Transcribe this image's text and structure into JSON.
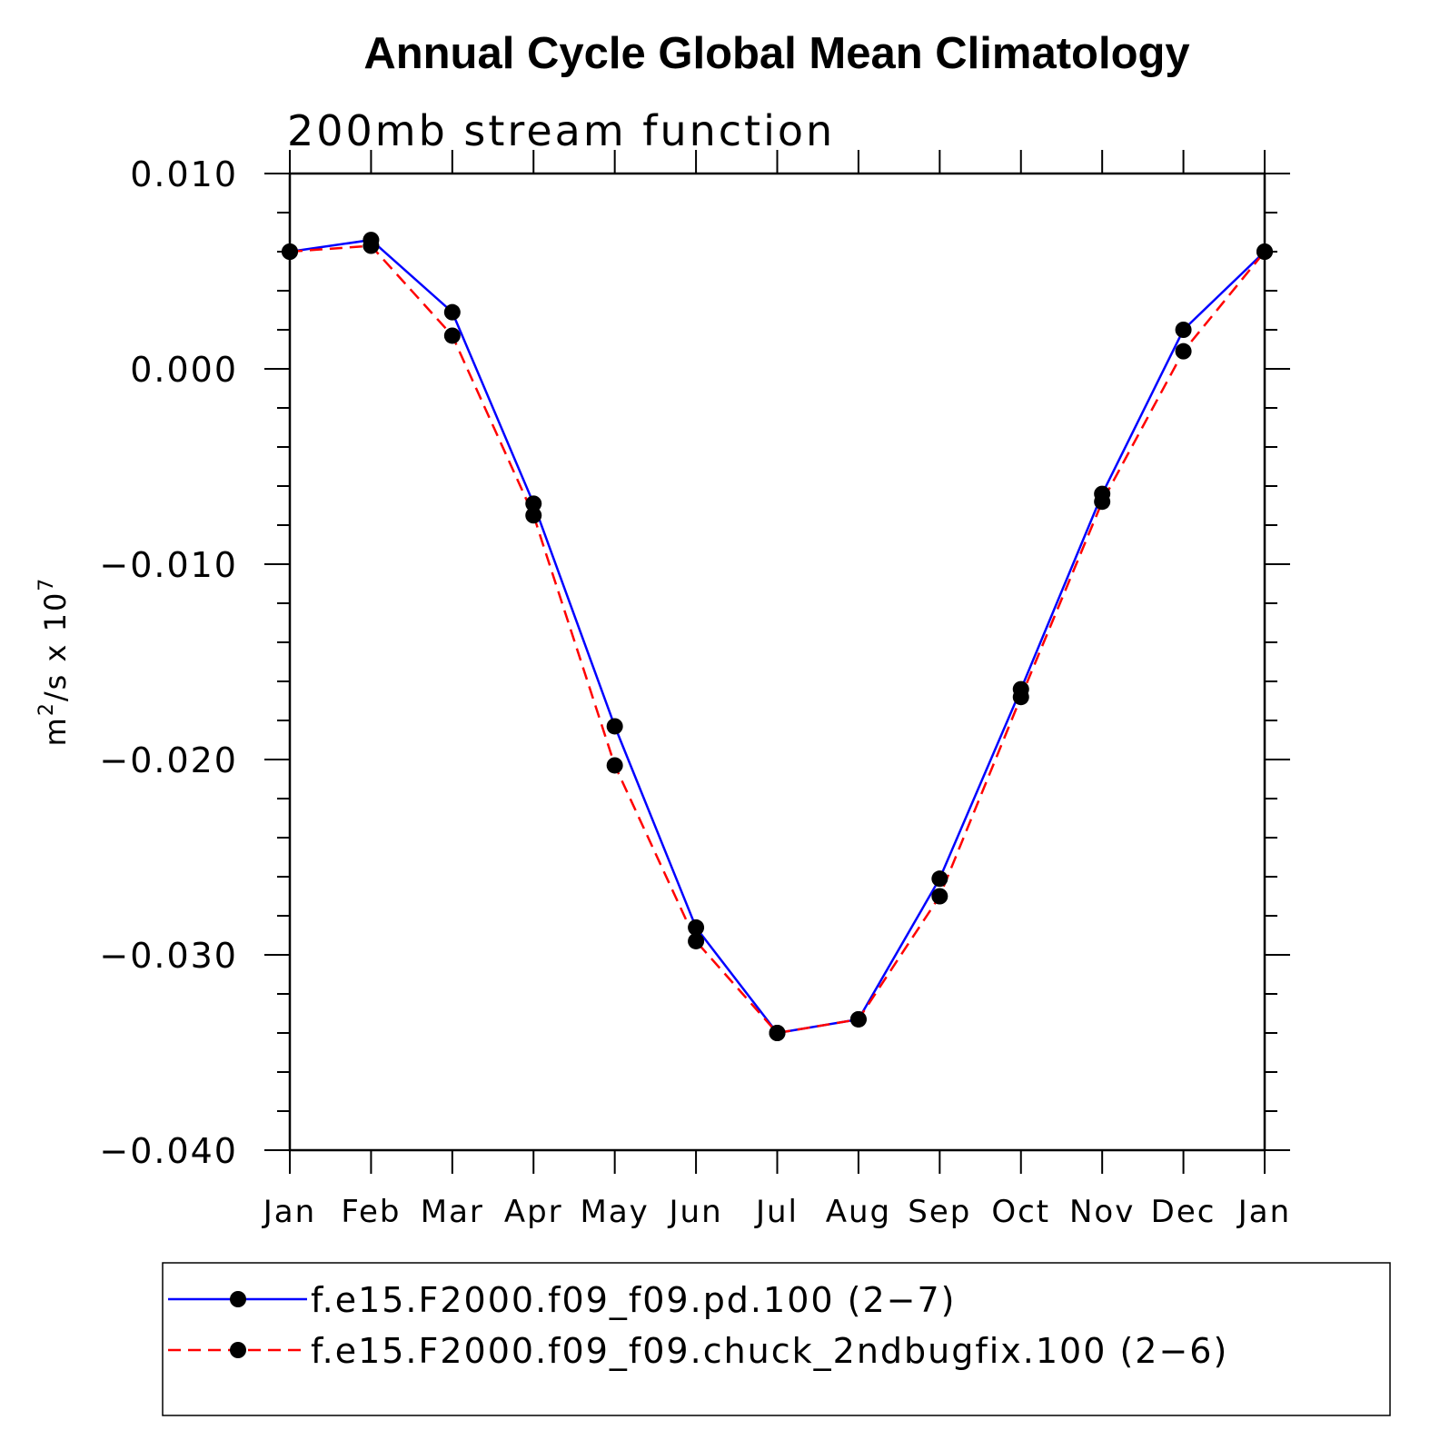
{
  "chart_data": {
    "type": "line",
    "title": "Annual Cycle Global Mean Climatology",
    "subtitle": "200mb stream function",
    "ylabel": {
      "base": "m",
      "base_sup": "2",
      "mid": "/s x 10",
      "exp_sup": "7"
    },
    "xlabel": "",
    "categories": [
      "Jan",
      "Feb",
      "Mar",
      "Apr",
      "May",
      "Jun",
      "Jul",
      "Aug",
      "Sep",
      "Oct",
      "Nov",
      "Dec",
      "Jan"
    ],
    "ylim": [
      -0.04,
      0.01
    ],
    "yticks": [
      {
        "value": 0.01,
        "label": "0.010"
      },
      {
        "value": 0.0,
        "label": "0.000"
      },
      {
        "value": -0.01,
        "label": "−0.010"
      },
      {
        "value": -0.02,
        "label": "−0.020"
      },
      {
        "value": -0.03,
        "label": "−0.030"
      },
      {
        "value": -0.04,
        "label": "−0.040"
      }
    ],
    "y_minor_step": 0.002,
    "grid": false,
    "legend_position": "bottom",
    "series": [
      {
        "name": "f.e15.F2000.f09_f09.pd.100 (2−7)",
        "color": "#0000ff",
        "dash": "solid",
        "marker": "filled-circle",
        "values": [
          0.006,
          0.0066,
          0.0029,
          -0.0069,
          -0.0183,
          -0.0286,
          -0.034,
          -0.0333,
          -0.0261,
          -0.0164,
          -0.0064,
          0.002,
          0.006
        ]
      },
      {
        "name": "f.e15.F2000.f09_f09.chuck_2ndbugfix.100 (2−6)",
        "color": "#ff0000",
        "dash": "dashed",
        "marker": "filled-circle",
        "values": [
          0.006,
          0.0063,
          0.0017,
          -0.0075,
          -0.0203,
          -0.0293,
          -0.034,
          -0.0333,
          -0.027,
          -0.0168,
          -0.0068,
          0.0009,
          0.006
        ]
      }
    ]
  }
}
